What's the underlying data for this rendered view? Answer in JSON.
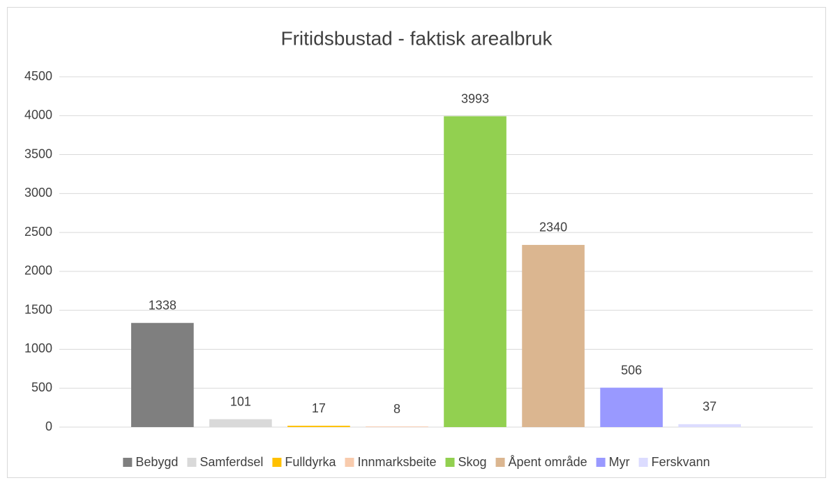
{
  "chart_data": {
    "type": "bar",
    "title": "Fritidsbustad - faktisk arealbruk",
    "categories": [
      null
    ],
    "series": [
      {
        "name": "Bebygd",
        "color": "#7f7f7f",
        "values": [
          1338
        ]
      },
      {
        "name": "Samferdsel",
        "color": "#d9d9d9",
        "values": [
          101
        ]
      },
      {
        "name": "Fulldyrka",
        "color": "#ffc000",
        "values": [
          17
        ]
      },
      {
        "name": "Innmarksbeite",
        "color": "#f8cbad",
        "values": [
          8
        ]
      },
      {
        "name": "Skog",
        "color": "#92d050",
        "values": [
          3993
        ]
      },
      {
        "name": "Åpent område",
        "color": "#dbb690",
        "values": [
          2340
        ]
      },
      {
        "name": "Myr",
        "color": "#9999ff",
        "values": [
          506
        ]
      },
      {
        "name": "Ferskvann",
        "color": "#dcdcff",
        "values": [
          37
        ]
      }
    ],
    "ylim": [
      0,
      4500
    ],
    "yticks": [
      0,
      500,
      1000,
      1500,
      2000,
      2500,
      3000,
      3500,
      4000,
      4500
    ],
    "grid": true,
    "legend": "bottom"
  }
}
